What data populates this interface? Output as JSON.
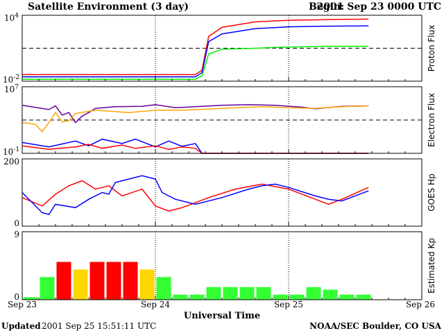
{
  "header": {
    "title": "Satellite Environment (3 day)",
    "begin_label": "Begin:",
    "begin_value": "2001 Sep 23 0000 UTC"
  },
  "footer": {
    "updated_label": "Updated",
    "updated_value": "2001 Sep 25 15:51:11 UTC",
    "credit": "NOAA/SEC Boulder, CO USA"
  },
  "x_axis": {
    "title": "Universal Time",
    "ticks": [
      "Sep 23",
      "Sep 24",
      "Sep 25",
      "Sep 26"
    ],
    "range_days": [
      0,
      3
    ]
  },
  "colors": {
    "red": "#ff0000",
    "blue": "#0000ff",
    "green": "#00ee00",
    "orange": "#ffa500",
    "purple": "#660099",
    "kp_green": "#33ff33",
    "kp_yellow": "#ffd700",
    "kp_red": "#ff0000"
  },
  "chart_data": [
    {
      "type": "line",
      "ylabel": "Proton Flux",
      "scale": "log",
      "tick_labels": [
        "10",
        "4",
        "10",
        "-2"
      ],
      "ylim": [
        0.01,
        10000
      ],
      "threshold": 10,
      "series": [
        {
          "color": "red",
          "x": [
            0,
            1.3,
            1.35,
            1.4,
            1.5,
            1.75,
            2.0,
            2.3,
            2.6
          ],
          "y": [
            0.04,
            0.04,
            0.1,
            120,
            800,
            2500,
            3500,
            4000,
            4500
          ]
        },
        {
          "color": "blue",
          "x": [
            0,
            1.3,
            1.35,
            1.4,
            1.5,
            1.75,
            2.0,
            2.3,
            2.6
          ],
          "y": [
            0.025,
            0.025,
            0.06,
            40,
            200,
            600,
            900,
            1000,
            1100
          ]
        },
        {
          "color": "green",
          "x": [
            0,
            1.3,
            1.35,
            1.4,
            1.5,
            1.75,
            2.0,
            2.3,
            2.6
          ],
          "y": [
            0.015,
            0.015,
            0.03,
            3,
            8,
            10,
            13,
            15,
            15
          ]
        }
      ]
    },
    {
      "type": "line",
      "ylabel": "Electron Flux",
      "scale": "log",
      "tick_labels": [
        "10",
        "7",
        "10",
        "-1"
      ],
      "ylim": [
        0.1,
        10000000
      ],
      "threshold": 1000,
      "series": [
        {
          "color": "purple",
          "x": [
            0,
            0.2,
            0.25,
            0.3,
            0.35,
            0.4,
            0.45,
            0.5,
            0.55,
            0.7,
            0.9,
            1.0,
            1.15,
            1.3,
            1.5,
            1.7,
            1.9,
            2.1,
            2.2,
            2.4,
            2.6
          ],
          "y": [
            60000,
            18000,
            50000,
            4000,
            8000,
            500,
            3000,
            8000,
            25000,
            40000,
            45000,
            70000,
            30000,
            40000,
            60000,
            70000,
            60000,
            35000,
            22000,
            45000,
            50000
          ]
        },
        {
          "color": "orange",
          "x": [
            0,
            0.1,
            0.15,
            0.2,
            0.25,
            0.3,
            0.35,
            0.4,
            0.55,
            0.8,
            1.0,
            1.2,
            1.5,
            1.8,
            2.0,
            2.2,
            2.4,
            2.6
          ],
          "y": [
            500,
            300,
            40,
            500,
            8000,
            600,
            800,
            6000,
            15000,
            8000,
            15000,
            15000,
            25000,
            40000,
            30000,
            25000,
            40000,
            50000
          ]
        },
        {
          "color": "blue",
          "x": [
            0,
            0.2,
            0.4,
            0.5,
            0.6,
            0.75,
            0.85,
            1.0,
            1.1,
            1.2,
            1.3,
            1.35,
            2.6
          ],
          "y": [
            2,
            0.6,
            3,
            0.8,
            5,
            1.5,
            5,
            0.6,
            3,
            0.7,
            1.5,
            0.1,
            0.1
          ]
        },
        {
          "color": "red",
          "x": [
            0,
            0.2,
            0.4,
            0.5,
            0.6,
            0.75,
            0.85,
            1.0,
            1.1,
            1.2,
            1.3,
            1.35,
            2.6
          ],
          "y": [
            0.8,
            0.3,
            0.6,
            1.2,
            0.4,
            1.0,
            0.4,
            0.8,
            0.3,
            0.6,
            0.4,
            0.1,
            0.1
          ]
        }
      ]
    },
    {
      "type": "line",
      "ylabel": "GOES Hp",
      "scale": "linear",
      "tick_labels": [
        "200",
        "0"
      ],
      "ylim": [
        0,
        200
      ],
      "series": [
        {
          "color": "red",
          "x": [
            0,
            0.15,
            0.25,
            0.35,
            0.45,
            0.55,
            0.65,
            0.75,
            0.9,
            1.0,
            1.1,
            1.2,
            1.4,
            1.6,
            1.8,
            2.0,
            2.2,
            2.3,
            2.4,
            2.6
          ],
          "y": [
            85,
            60,
            95,
            120,
            135,
            110,
            120,
            90,
            110,
            60,
            45,
            55,
            85,
            110,
            125,
            110,
            80,
            65,
            80,
            115
          ]
        },
        {
          "color": "blue",
          "x": [
            0,
            0.15,
            0.2,
            0.25,
            0.4,
            0.5,
            0.6,
            0.65,
            0.7,
            0.8,
            0.9,
            1.0,
            1.05,
            1.15,
            1.3,
            1.5,
            1.7,
            1.8,
            1.9,
            2.0,
            2.2,
            2.3,
            2.4,
            2.6
          ],
          "y": [
            100,
            40,
            35,
            65,
            55,
            80,
            100,
            95,
            130,
            140,
            150,
            140,
            100,
            80,
            65,
            85,
            110,
            120,
            125,
            115,
            90,
            80,
            75,
            105
          ]
        }
      ]
    },
    {
      "type": "bar",
      "ylabel": "Estimated Kp",
      "scale": "linear",
      "tick_labels": [
        "9",
        "0"
      ],
      "ylim": [
        0,
        9
      ],
      "bar_days": 0.125,
      "values": [
        0.33,
        3,
        5,
        4,
        5,
        5,
        5,
        4,
        3,
        0.67,
        0.67,
        1.67,
        1.67,
        1.67,
        1.67,
        0.67,
        0.67,
        1.67,
        1.33,
        0.67,
        0.67
      ],
      "bar_colors": [
        "kp_green",
        "kp_green",
        "kp_red",
        "kp_yellow",
        "kp_red",
        "kp_red",
        "kp_red",
        "kp_yellow",
        "kp_green",
        "kp_green",
        "kp_green",
        "kp_green",
        "kp_green",
        "kp_green",
        "kp_green",
        "kp_green",
        "kp_green",
        "kp_green",
        "kp_green",
        "kp_green",
        "kp_green"
      ]
    }
  ]
}
